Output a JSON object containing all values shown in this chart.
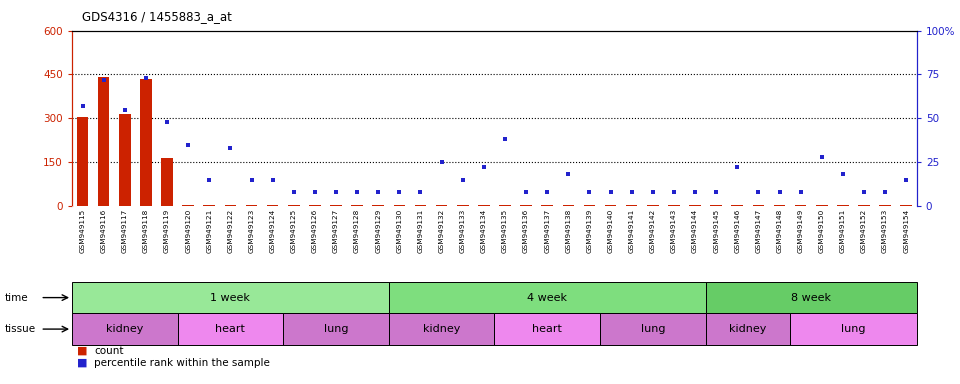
{
  "title": "GDS4316 / 1455883_a_at",
  "samples": [
    "GSM949115",
    "GSM949116",
    "GSM949117",
    "GSM949118",
    "GSM949119",
    "GSM949120",
    "GSM949121",
    "GSM949122",
    "GSM949123",
    "GSM949124",
    "GSM949125",
    "GSM949126",
    "GSM949127",
    "GSM949128",
    "GSM949129",
    "GSM949130",
    "GSM949131",
    "GSM949132",
    "GSM949133",
    "GSM949134",
    "GSM949135",
    "GSM949136",
    "GSM949137",
    "GSM949138",
    "GSM949139",
    "GSM949140",
    "GSM949141",
    "GSM949142",
    "GSM949143",
    "GSM949144",
    "GSM949145",
    "GSM949146",
    "GSM949147",
    "GSM949148",
    "GSM949149",
    "GSM949150",
    "GSM949151",
    "GSM949152",
    "GSM949153",
    "GSM949154"
  ],
  "counts": [
    305,
    440,
    315,
    435,
    165,
    4,
    4,
    4,
    4,
    4,
    4,
    4,
    4,
    4,
    4,
    4,
    4,
    4,
    4,
    4,
    4,
    4,
    4,
    4,
    4,
    4,
    4,
    4,
    4,
    4,
    4,
    4,
    4,
    4,
    4,
    4,
    4,
    4,
    4,
    4
  ],
  "percentile": [
    57,
    72,
    55,
    73,
    48,
    35,
    15,
    33,
    15,
    15,
    8,
    8,
    8,
    8,
    8,
    8,
    8,
    25,
    15,
    22,
    38,
    8,
    8,
    18,
    8,
    8,
    8,
    8,
    8,
    8,
    8,
    22,
    8,
    8,
    8,
    28,
    18,
    8,
    8,
    15
  ],
  "ylim_left": [
    0,
    600
  ],
  "ylim_right": [
    0,
    100
  ],
  "yticks_left": [
    0,
    150,
    300,
    450,
    600
  ],
  "yticks_right": [
    0,
    25,
    50,
    75,
    100
  ],
  "right_tick_labels": [
    "0",
    "25",
    "50",
    "75",
    "100%"
  ],
  "hlines": [
    150,
    300,
    450
  ],
  "time_groups": [
    {
      "label": "1 week",
      "start": 0,
      "end": 15,
      "color": "#98E898"
    },
    {
      "label": "4 week",
      "start": 15,
      "end": 30,
      "color": "#7EDE7E"
    },
    {
      "label": "8 week",
      "start": 30,
      "end": 40,
      "color": "#66CC66"
    }
  ],
  "tissue_groups": [
    {
      "label": "kidney",
      "start": 0,
      "end": 5,
      "color": "#CC77CC"
    },
    {
      "label": "heart",
      "start": 5,
      "end": 10,
      "color": "#EE88EE"
    },
    {
      "label": "lung",
      "start": 10,
      "end": 15,
      "color": "#CC77CC"
    },
    {
      "label": "kidney",
      "start": 15,
      "end": 20,
      "color": "#CC77CC"
    },
    {
      "label": "heart",
      "start": 20,
      "end": 25,
      "color": "#EE88EE"
    },
    {
      "label": "lung",
      "start": 25,
      "end": 30,
      "color": "#CC77CC"
    },
    {
      "label": "kidney",
      "start": 30,
      "end": 34,
      "color": "#CC77CC"
    },
    {
      "label": "lung",
      "start": 34,
      "end": 40,
      "color": "#EE88EE"
    }
  ],
  "bar_color": "#CC2200",
  "dot_color": "#2222CC",
  "left_axis_color": "#CC2200",
  "right_axis_color": "#2222CC",
  "sample_label_bg": "#CCCCCC",
  "plot_bg": "#FFFFFF",
  "n_samples": 40
}
